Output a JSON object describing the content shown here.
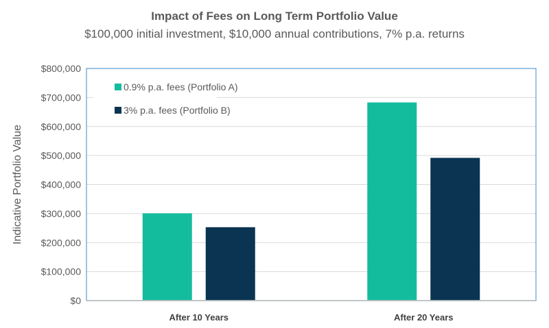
{
  "chart_data": {
    "type": "bar",
    "title": "Impact of Fees on Long Term Portfolio Value",
    "subtitle": "$100,000 initial investment, $10,000 annual contributions, 7% p.a. returns",
    "xlabel": "",
    "ylabel": "Indicative Portfolio Value",
    "ylim": [
      0,
      800000
    ],
    "yticks": [
      "$0",
      "$100,000",
      "$200,000",
      "$300,000",
      "$400,000",
      "$500,000",
      "$600,000",
      "$700,000",
      "$800,000"
    ],
    "categories": [
      "After 10 Years",
      "After 20 Years"
    ],
    "series": [
      {
        "name": "0.9% p.a. fees (Portfolio A)",
        "color": "#14BC9E",
        "values": [
          301000,
          683000
        ]
      },
      {
        "name": "3% p.a. fees (Portfolio B)",
        "color": "#0A3452",
        "values": [
          253000,
          492000
        ]
      }
    ],
    "grid": true,
    "legend": "top-left"
  }
}
